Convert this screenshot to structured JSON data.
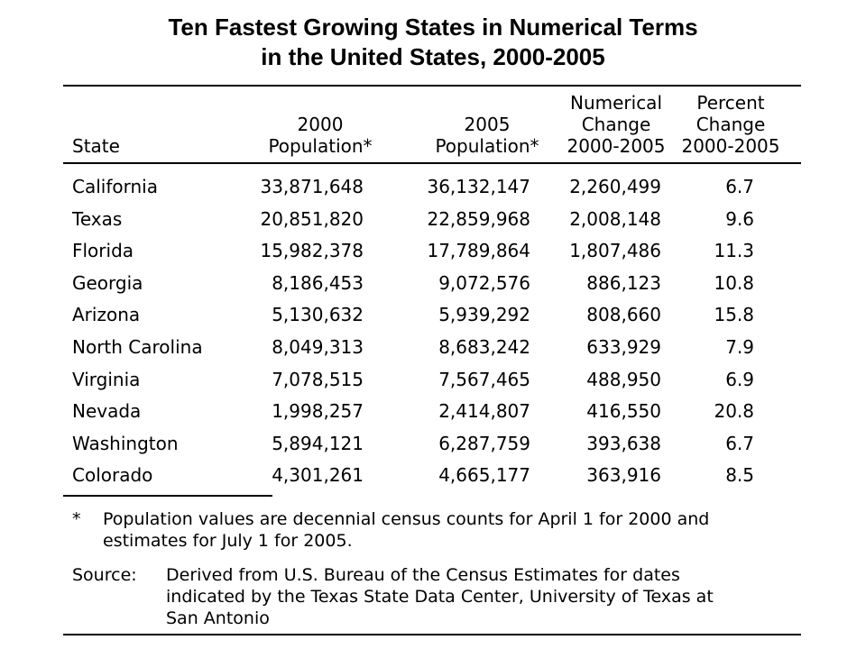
{
  "title": {
    "line1": "Ten Fastest Growing States in Numerical Terms",
    "line2": "in the United States, 2000-2005"
  },
  "table": {
    "headers": {
      "state": [
        "State"
      ],
      "pop2000": [
        "2000",
        "Population*"
      ],
      "pop2005": [
        "2005",
        "Population*"
      ],
      "numerical_change": [
        "Numerical",
        "Change",
        "2000-2005"
      ],
      "percent_change": [
        "Percent",
        "Change",
        "2000-2005"
      ]
    },
    "rows": [
      {
        "state": "California",
        "pop2000": "33,871,648",
        "pop2005": "36,132,147",
        "numerical_change": "2,260,499",
        "percent_change": "6.7"
      },
      {
        "state": "Texas",
        "pop2000": "20,851,820",
        "pop2005": "22,859,968",
        "numerical_change": "2,008,148",
        "percent_change": "9.6"
      },
      {
        "state": "Florida",
        "pop2000": "15,982,378",
        "pop2005": "17,789,864",
        "numerical_change": "1,807,486",
        "percent_change": "11.3"
      },
      {
        "state": "Georgia",
        "pop2000": "8,186,453",
        "pop2005": "9,072,576",
        "numerical_change": "886,123",
        "percent_change": "10.8"
      },
      {
        "state": "Arizona",
        "pop2000": "5,130,632",
        "pop2005": "5,939,292",
        "numerical_change": "808,660",
        "percent_change": "15.8"
      },
      {
        "state": "North Carolina",
        "pop2000": "8,049,313",
        "pop2005": "8,683,242",
        "numerical_change": "633,929",
        "percent_change": "7.9"
      },
      {
        "state": "Virginia",
        "pop2000": "7,078,515",
        "pop2005": "7,567,465",
        "numerical_change": "488,950",
        "percent_change": "6.9"
      },
      {
        "state": "Nevada",
        "pop2000": "1,998,257",
        "pop2005": "2,414,807",
        "numerical_change": "416,550",
        "percent_change": "20.8"
      },
      {
        "state": "Washington",
        "pop2000": "5,894,121",
        "pop2005": "6,287,759",
        "numerical_change": "393,638",
        "percent_change": "6.7"
      },
      {
        "state": "Colorado",
        "pop2000": "4,301,261",
        "pop2005": "4,665,177",
        "numerical_change": "363,916",
        "percent_change": "8.5"
      }
    ]
  },
  "footnote": {
    "marker": "*",
    "lines": [
      "Population values are decennial census counts for April 1 for 2000 and",
      "estimates for July 1 for 2005."
    ]
  },
  "source": {
    "label": "Source:",
    "lines": [
      "Derived from U.S. Bureau of the Census Estimates for dates",
      "indicated by the Texas State Data Center, University of Texas at",
      "San Antonio"
    ]
  }
}
